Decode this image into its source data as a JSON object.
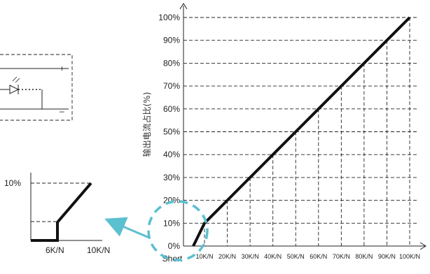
{
  "chart_data": {
    "type": "line",
    "title": "",
    "ylabel": "输出电流占比(%)",
    "xlabel": "",
    "x_tick_labels": [
      "Short",
      "10K/N",
      "20K/N",
      "30K/N",
      "40K/N",
      "50K/N",
      "60K/N",
      "70K/N",
      "80K/N",
      "90K/N",
      "100K/N"
    ],
    "y_tick_labels": [
      "0%",
      "10%",
      "20%",
      "30%",
      "40%",
      "50%",
      "60%",
      "70%",
      "80%",
      "90%",
      "100%"
    ],
    "ylim": [
      0,
      100
    ],
    "series": [
      {
        "x": [
          "Short",
          "6K/N",
          "10K/N",
          "20K/N",
          "30K/N",
          "40K/N",
          "50K/N",
          "60K/N",
          "70K/N",
          "80K/N",
          "90K/N",
          "100K/N"
        ],
        "values": [
          0,
          0,
          10,
          20,
          30,
          40,
          50,
          60,
          70,
          80,
          90,
          100
        ]
      }
    ],
    "inset": {
      "x_tick_labels": [
        "6K/N",
        "10K/N"
      ],
      "y_tick_labels": [
        "10%"
      ]
    }
  },
  "circuit": {
    "plus": "+",
    "minus": "–"
  },
  "colors": {
    "line": "#111111",
    "grid": "#222222",
    "highlight": "#5bc0d0"
  }
}
